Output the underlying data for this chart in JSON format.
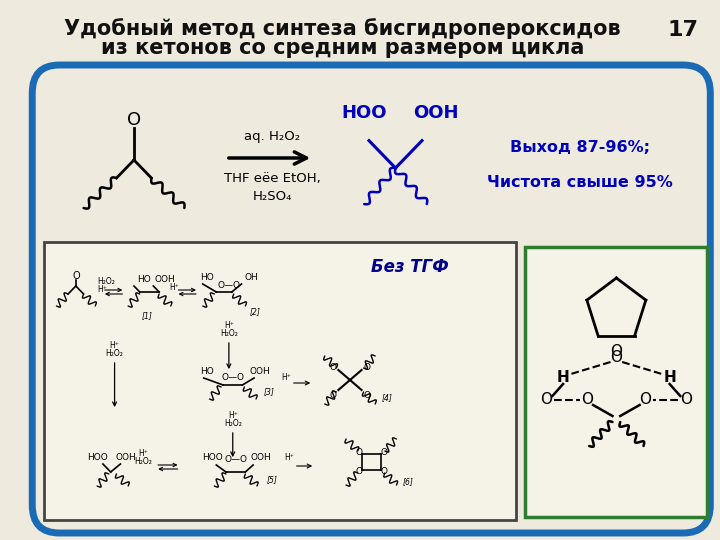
{
  "bg_color": "#eeeade",
  "border_color": "#1a6ab5",
  "title_line1": "Удобный метод синтеза бисгидропероксидов",
  "title_line2": "из кетонов со средним размером цикла",
  "slide_number": "17",
  "title_fontsize": 15,
  "title_color": "#111111",
  "slide_num_color": "#111111",
  "cond1": "aq. H₂O₂",
  "cond2": "THF еёе EtOH,",
  "cond3": "H₂SO₄",
  "hoo": "HOO",
  "ooh": "OOH",
  "yield1": "Выход 87-96%;",
  "yield2": "Чистота свыше 95%",
  "yield_color": "#0000bb",
  "mech_label": "Без ТГФ",
  "mech_color": "#00008b",
  "panel1_edge": "#444444",
  "panel2_edge": "#2e7d2e"
}
